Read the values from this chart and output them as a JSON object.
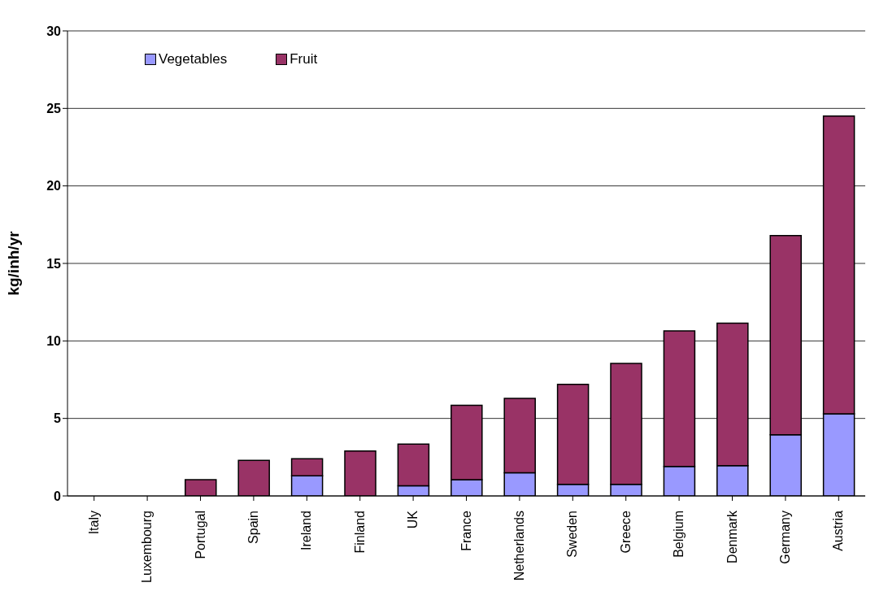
{
  "chart_data": {
    "type": "bar",
    "ylabel": "kg/inh/yr",
    "stacked": true,
    "grid": "y",
    "legend": "top left",
    "categories": [
      "Italy",
      "Luxembourg",
      "Portugal",
      "Spain",
      "Ireland",
      "Finland",
      "UK",
      "France",
      "Netherlands",
      "Sweden",
      "Greece",
      "Belgium",
      "Denmark",
      "Germany",
      "Austria"
    ],
    "series": [
      {
        "name": "Vegetables",
        "color": "#9999ff",
        "values": [
          0,
          0,
          null,
          null,
          1.3,
          null,
          0.65,
          1.05,
          1.5,
          0.75,
          0.75,
          1.9,
          1.95,
          3.95,
          5.3
        ]
      },
      {
        "name": "Fruit",
        "color": "#993366",
        "values": [
          0,
          0,
          1.05,
          2.3,
          1.1,
          2.9,
          2.7,
          4.8,
          4.8,
          6.45,
          7.8,
          8.75,
          9.2,
          12.85,
          19.2
        ]
      }
    ],
    "ylim": [
      0,
      30
    ],
    "yticks": [
      0,
      5,
      10,
      15,
      20,
      25,
      30
    ]
  }
}
